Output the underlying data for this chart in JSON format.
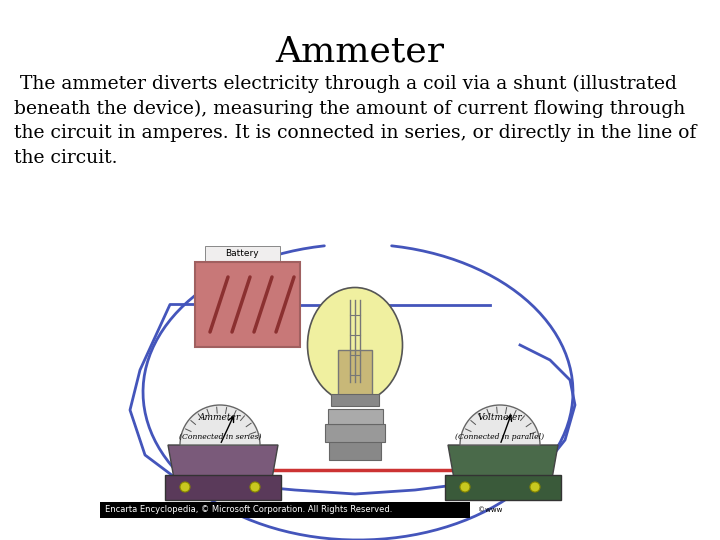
{
  "title": "Ammeter",
  "title_fontsize": 26,
  "title_font": "serif",
  "title_color": "#000000",
  "body_text": " The ammeter diverts electricity through a coil via a shunt (illustrated\nbeneath the device), measuring the amount of current flowing through\nthe circuit in amperes. It is connected in series, or directly in the line of\nthe circuit.",
  "body_fontsize": 13.5,
  "body_font": "serif",
  "body_color": "#000000",
  "background_color": "#ffffff",
  "footer_text": "Encarta Encyclopedia, © Microsoft Corporation. All Rights Reserved.",
  "footer_bg": "#000000",
  "footer_color": "#ffffff",
  "footer_fontsize": 6,
  "wire_blue": "#4455bb",
  "wire_red": "#cc3333",
  "bulb_yellow": "#f0f0a0",
  "battery_pink": "#c87878",
  "battery_border": "#a06060",
  "coil_dark": "#8B3030",
  "ammeter_purple": "#7a5a7a",
  "ammeter_base_dark": "#5a3a5a",
  "voltmeter_green": "#4a6a4a",
  "voltmeter_base_dark": "#3a5a3a",
  "gauge_face": "#e8e8e8",
  "bulb_base_gray": "#909090",
  "bulb_neck_tan": "#c8b878"
}
